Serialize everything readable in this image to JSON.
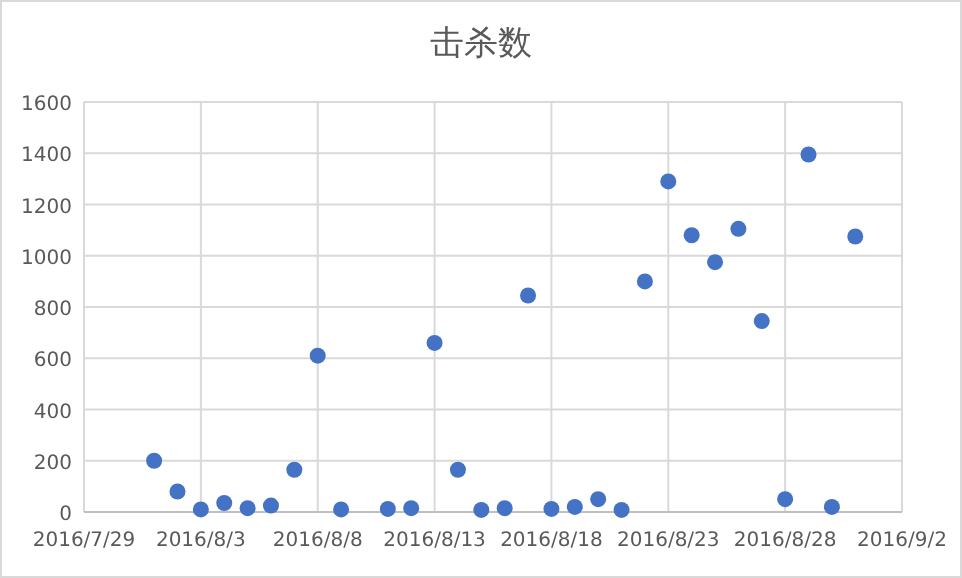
{
  "chart_data": {
    "type": "scatter",
    "title": "击杀数",
    "x": [
      "2016-08-01",
      "2016-08-02",
      "2016-08-03",
      "2016-08-04",
      "2016-08-05",
      "2016-08-06",
      "2016-08-07",
      "2016-08-08",
      "2016-08-09",
      "2016-08-11",
      "2016-08-12",
      "2016-08-13",
      "2016-08-14",
      "2016-08-15",
      "2016-08-16",
      "2016-08-17",
      "2016-08-18",
      "2016-08-19",
      "2016-08-20",
      "2016-08-21",
      "2016-08-22",
      "2016-08-23",
      "2016-08-24",
      "2016-08-25",
      "2016-08-26",
      "2016-08-27",
      "2016-08-28",
      "2016-08-29",
      "2016-08-30",
      "2016-08-31"
    ],
    "values": [
      200,
      80,
      10,
      35,
      15,
      25,
      165,
      610,
      10,
      12,
      15,
      660,
      165,
      8,
      15,
      845,
      12,
      20,
      50,
      8,
      900,
      1290,
      1080,
      975,
      1105,
      745,
      50,
      1395,
      20,
      1075
    ],
    "color": "#4472c4",
    "marker": "circle",
    "grid": true,
    "xlim": [
      "2016-07-29",
      "2016-09-02"
    ],
    "xticks": [
      {
        "value": "2016-07-29",
        "label": "2016/7/29"
      },
      {
        "value": "2016-08-03",
        "label": "2016/8/3"
      },
      {
        "value": "2016-08-08",
        "label": "2016/8/8"
      },
      {
        "value": "2016-08-13",
        "label": "2016/8/13"
      },
      {
        "value": "2016-08-18",
        "label": "2016/8/18"
      },
      {
        "value": "2016-08-23",
        "label": "2016/8/23"
      },
      {
        "value": "2016-08-28",
        "label": "2016/8/28"
      },
      {
        "value": "2016-09-02",
        "label": "2016/9/2"
      }
    ],
    "ylim": [
      0,
      1600
    ],
    "yticks": [
      0,
      200,
      400,
      600,
      800,
      1000,
      1200,
      1400,
      1600
    ]
  }
}
